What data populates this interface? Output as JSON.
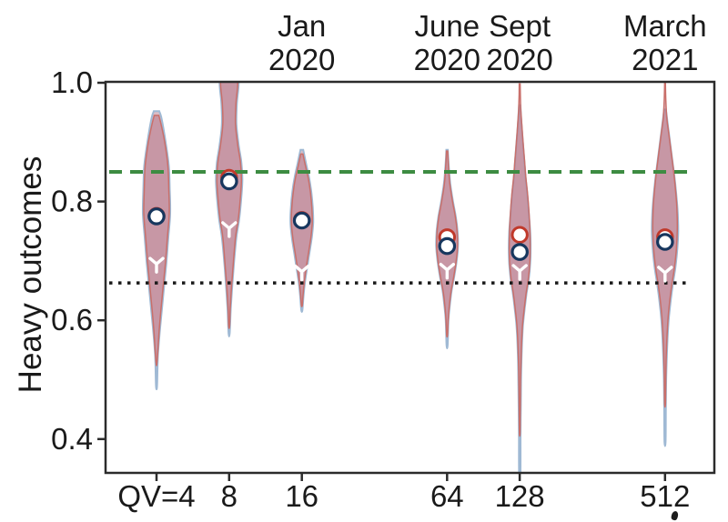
{
  "figure": {
    "kind": "violin-plot-panel"
  },
  "colors": {
    "violin_fill": "#b06a7f",
    "violin_fill_alpha": 0.45,
    "violin_edge_blue": "#9fb9d4",
    "violin_edge_red": "#c96f6a",
    "median_blue_edge": "#17375e",
    "median_red_edge": "#c0392b",
    "mean_marker": "#ffffff",
    "upper_line": "#3d8c42",
    "lower_line": "#1a1a1a",
    "axis": "#2b2b2b",
    "text": "#1a1a1a"
  },
  "chart_data": {
    "type": "violin",
    "title": "",
    "xlabel": "",
    "ylabel": "Heavy outcomes",
    "ylim": [
      0.34,
      1.0
    ],
    "x_scale": "log2 of QV",
    "grid": false,
    "yticks": [
      {
        "value": 1.0,
        "label": "1.0"
      },
      {
        "value": 0.8,
        "label": "0.8"
      },
      {
        "value": 0.6,
        "label": "0.6"
      },
      {
        "value": 0.4,
        "label": "0.4"
      }
    ],
    "reference_lines": [
      {
        "name": "upper-dashed-target",
        "value": 0.85,
        "style": "dashed",
        "color": "#3d8c42"
      },
      {
        "name": "lower-dotted-baseline",
        "value": 0.663,
        "style": "dotted",
        "color": "#1a1a1a"
      }
    ],
    "violins": [
      {
        "qv": 4,
        "tick_label": "QV=4",
        "date_label": null,
        "median_red": 0.776,
        "median_blue": 0.775,
        "mean_marker": 0.695,
        "blue_shape": [
          [
            0.952,
            3
          ],
          [
            0.94,
            5.5
          ],
          [
            0.9,
            10
          ],
          [
            0.86,
            13.5
          ],
          [
            0.82,
            14.5
          ],
          [
            0.78,
            15
          ],
          [
            0.74,
            13
          ],
          [
            0.7,
            11
          ],
          [
            0.66,
            8.5
          ],
          [
            0.62,
            6
          ],
          [
            0.58,
            3.5
          ],
          [
            0.54,
            1.5
          ],
          [
            0.49,
            0.6
          ]
        ],
        "red_shape": [
          [
            0.945,
            2.5
          ],
          [
            0.93,
            5
          ],
          [
            0.9,
            9
          ],
          [
            0.86,
            12.5
          ],
          [
            0.82,
            13.5
          ],
          [
            0.78,
            14
          ],
          [
            0.74,
            12
          ],
          [
            0.7,
            10
          ],
          [
            0.66,
            7.5
          ],
          [
            0.62,
            5
          ],
          [
            0.58,
            2.8
          ],
          [
            0.53,
            0.6
          ]
        ]
      },
      {
        "qv": 8,
        "tick_label": "8",
        "date_label": null,
        "median_red": 0.84,
        "median_blue": 0.834,
        "mean_marker": 0.755,
        "blue_shape": [
          [
            1.04,
            9
          ],
          [
            1.0,
            10.5
          ],
          [
            0.965,
            8.5
          ],
          [
            0.93,
            8
          ],
          [
            0.895,
            10.5
          ],
          [
            0.865,
            13.5
          ],
          [
            0.835,
            14.5
          ],
          [
            0.8,
            13
          ],
          [
            0.77,
            11
          ],
          [
            0.74,
            8
          ],
          [
            0.7,
            5.5
          ],
          [
            0.66,
            3.5
          ],
          [
            0.62,
            1.8
          ],
          [
            0.578,
            0.6
          ]
        ],
        "red_shape": [
          [
            1.04,
            8
          ],
          [
            1.0,
            9.5
          ],
          [
            0.965,
            7.5
          ],
          [
            0.93,
            7
          ],
          [
            0.895,
            9.5
          ],
          [
            0.865,
            12.5
          ],
          [
            0.835,
            13.5
          ],
          [
            0.8,
            12
          ],
          [
            0.77,
            10
          ],
          [
            0.74,
            7
          ],
          [
            0.7,
            4.8
          ],
          [
            0.66,
            2.8
          ],
          [
            0.62,
            1.2
          ],
          [
            0.59,
            0.5
          ]
        ]
      },
      {
        "qv": 16,
        "tick_label": "16",
        "date_label": [
          "Jan",
          "2020"
        ],
        "median_red": 0.769,
        "median_blue": 0.768,
        "mean_marker": 0.682,
        "blue_shape": [
          [
            0.887,
            1.5
          ],
          [
            0.865,
            4.5
          ],
          [
            0.84,
            8
          ],
          [
            0.815,
            10.5
          ],
          [
            0.79,
            12
          ],
          [
            0.765,
            12.5
          ],
          [
            0.74,
            11
          ],
          [
            0.715,
            8.5
          ],
          [
            0.69,
            6
          ],
          [
            0.665,
            3.5
          ],
          [
            0.64,
            1.8
          ],
          [
            0.617,
            0.6
          ]
        ],
        "red_shape": [
          [
            0.88,
            1.2
          ],
          [
            0.86,
            4
          ],
          [
            0.84,
            7
          ],
          [
            0.815,
            9.5
          ],
          [
            0.79,
            11
          ],
          [
            0.765,
            11.5
          ],
          [
            0.74,
            10
          ],
          [
            0.715,
            7.5
          ],
          [
            0.69,
            5
          ],
          [
            0.665,
            2.8
          ],
          [
            0.64,
            1.2
          ],
          [
            0.625,
            0.5
          ]
        ]
      },
      {
        "qv": 64,
        "tick_label": "64",
        "date_label": [
          "June",
          "2020"
        ],
        "median_red": 0.74,
        "median_blue": 0.725,
        "mean_marker": 0.685,
        "blue_shape": [
          [
            0.887,
            0.8
          ],
          [
            0.86,
            1.8
          ],
          [
            0.83,
            3.5
          ],
          [
            0.8,
            6.5
          ],
          [
            0.775,
            9.5
          ],
          [
            0.75,
            11.5
          ],
          [
            0.725,
            12
          ],
          [
            0.7,
            10.5
          ],
          [
            0.675,
            8
          ],
          [
            0.65,
            5
          ],
          [
            0.625,
            3
          ],
          [
            0.6,
            1.5
          ],
          [
            0.558,
            0.6
          ]
        ],
        "red_shape": [
          [
            0.885,
            0.7
          ],
          [
            0.86,
            1.5
          ],
          [
            0.83,
            3
          ],
          [
            0.8,
            6
          ],
          [
            0.775,
            9
          ],
          [
            0.75,
            11
          ],
          [
            0.725,
            11.5
          ],
          [
            0.7,
            10
          ],
          [
            0.675,
            7.5
          ],
          [
            0.65,
            4.5
          ],
          [
            0.625,
            2.5
          ],
          [
            0.6,
            1.2
          ],
          [
            0.575,
            0.5
          ]
        ]
      },
      {
        "qv": 128,
        "tick_label": "128",
        "date_label": [
          "Sept",
          "2020"
        ],
        "median_red": 0.744,
        "median_blue": 0.715,
        "mean_marker": 0.683,
        "blue_shape": [
          [
            0.962,
            0.8
          ],
          [
            0.93,
            2
          ],
          [
            0.9,
            3.5
          ],
          [
            0.87,
            5
          ],
          [
            0.84,
            6.5
          ],
          [
            0.81,
            8.5
          ],
          [
            0.78,
            10
          ],
          [
            0.75,
            11.5
          ],
          [
            0.72,
            12
          ],
          [
            0.695,
            11.5
          ],
          [
            0.67,
            10
          ],
          [
            0.645,
            7.5
          ],
          [
            0.62,
            5.5
          ],
          [
            0.59,
            3.5
          ],
          [
            0.55,
            2.2
          ],
          [
            0.5,
            1.5
          ],
          [
            0.45,
            1.1
          ],
          [
            0.4,
            0.9
          ],
          [
            0.345,
            0.7
          ]
        ],
        "red_shape": [
          [
            0.998,
            0.5
          ],
          [
            0.96,
            1
          ],
          [
            0.93,
            2.2
          ],
          [
            0.9,
            3.6
          ],
          [
            0.87,
            5.2
          ],
          [
            0.84,
            6.8
          ],
          [
            0.81,
            8.8
          ],
          [
            0.78,
            10.2
          ],
          [
            0.75,
            11.2
          ],
          [
            0.72,
            11.5
          ],
          [
            0.695,
            11
          ],
          [
            0.67,
            9.5
          ],
          [
            0.645,
            7
          ],
          [
            0.62,
            5
          ],
          [
            0.59,
            3
          ],
          [
            0.55,
            1.8
          ],
          [
            0.5,
            1
          ],
          [
            0.45,
            0.6
          ],
          [
            0.41,
            0.4
          ]
        ]
      },
      {
        "qv": 512,
        "tick_label": "512",
        "date_label": [
          "March",
          "2021"
        ],
        "median_red": 0.74,
        "median_blue": 0.732,
        "mean_marker": 0.68,
        "blue_shape": [
          [
            0.955,
            1
          ],
          [
            0.93,
            3
          ],
          [
            0.9,
            5.5
          ],
          [
            0.87,
            8
          ],
          [
            0.84,
            10.5
          ],
          [
            0.81,
            12.5
          ],
          [
            0.78,
            14
          ],
          [
            0.75,
            14.5
          ],
          [
            0.72,
            13.5
          ],
          [
            0.69,
            11.5
          ],
          [
            0.66,
            8.5
          ],
          [
            0.63,
            6
          ],
          [
            0.6,
            4
          ],
          [
            0.56,
            2.5
          ],
          [
            0.51,
            1.4
          ],
          [
            0.45,
            0.9
          ],
          [
            0.395,
            0.6
          ]
        ],
        "red_shape": [
          [
            1.0,
            0.4
          ],
          [
            0.97,
            0.9
          ],
          [
            0.94,
            2
          ],
          [
            0.91,
            4.5
          ],
          [
            0.88,
            7
          ],
          [
            0.85,
            9.5
          ],
          [
            0.82,
            11.5
          ],
          [
            0.79,
            13
          ],
          [
            0.755,
            13.5
          ],
          [
            0.72,
            12.5
          ],
          [
            0.69,
            10.5
          ],
          [
            0.66,
            7.5
          ],
          [
            0.63,
            5
          ],
          [
            0.6,
            3.2
          ],
          [
            0.56,
            1.8
          ],
          [
            0.51,
            0.9
          ],
          [
            0.46,
            0.5
          ]
        ]
      }
    ]
  }
}
